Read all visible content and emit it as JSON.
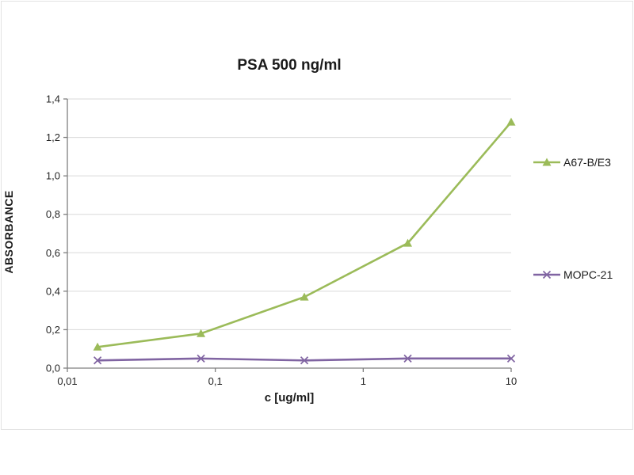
{
  "chart_data": {
    "type": "line",
    "title": "PSA 500 ng/ml",
    "xlabel": "c [ug/ml]",
    "ylabel": "ABSORBANCE",
    "x_scale": "log",
    "xlim": [
      0.01,
      10
    ],
    "ylim": [
      0.0,
      1.4
    ],
    "x_ticks": [
      0.01,
      0.1,
      1,
      10
    ],
    "x_tick_labels": [
      "0,01",
      "0,1",
      "1",
      "10"
    ],
    "y_ticks": [
      0.0,
      0.2,
      0.4,
      0.6,
      0.8,
      1.0,
      1.2,
      1.4
    ],
    "y_tick_labels": [
      "0,0",
      "0,2",
      "0,4",
      "0,6",
      "0,8",
      "1,0",
      "1,2",
      "1,4"
    ],
    "grid": "horizontal",
    "legend_position": "right",
    "colors": {
      "gridline": "#d9d9d9",
      "axis": "#7f7f7f",
      "series_green": "#9bbb59",
      "series_purple": "#8064a2"
    },
    "series": [
      {
        "name": "A67-B/E3",
        "color": "#9bbb59",
        "marker": "triangle",
        "x": [
          0.016,
          0.08,
          0.4,
          2,
          10
        ],
        "values": [
          0.11,
          0.18,
          0.37,
          0.65,
          1.28
        ]
      },
      {
        "name": "MOPC-21",
        "color": "#8064a2",
        "marker": "x",
        "x": [
          0.016,
          0.08,
          0.4,
          2,
          10
        ],
        "values": [
          0.04,
          0.05,
          0.04,
          0.05,
          0.05
        ]
      }
    ]
  }
}
